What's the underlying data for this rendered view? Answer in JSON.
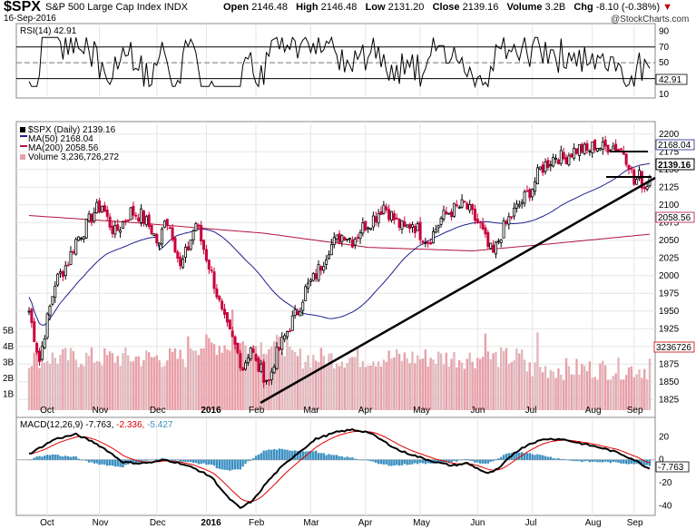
{
  "header": {
    "ticker": "$SPX",
    "description": "S&P 500 Large Cap Index",
    "exchange": "INDX",
    "date": "16-Sep-2016",
    "open_label": "Open",
    "open": "2146.48",
    "high_label": "High",
    "high": "2146.48",
    "low_label": "Low",
    "low": "2131.20",
    "close_label": "Close",
    "close": "2139.16",
    "volume_label": "Volume",
    "volume": "3.2B",
    "chg_label": "Chg",
    "chg": "-8.10 (-0.38%)",
    "brand": "@StockCharts.com"
  },
  "colors": {
    "up": "#000000",
    "down": "#c8003c",
    "ma50": "#1f1f8f",
    "ma200": "#b0133d",
    "volume": "#e8a0a8",
    "macd_hist": "#3a8fc0",
    "macd_signal": "#e00000",
    "rsi": "#000000"
  },
  "chart_data": [
    {
      "type": "line",
      "panel": "RSI",
      "title": "RSI(14) 42.91",
      "series": [
        {
          "name": "RSI(14)",
          "last": 42.91
        }
      ],
      "ylim": [
        10,
        95
      ],
      "y_ticks": [
        90,
        70,
        50,
        30,
        10
      ],
      "reference_lines": [
        70,
        50,
        30
      ],
      "last_label": "42.91"
    },
    {
      "type": "candlestick",
      "panel": "price",
      "title": "$SPX (Daily) 2139.16",
      "legend": [
        "$SPX (Daily) 2139.16",
        "MA(50) 2168.04",
        "MA(200) 2058.56",
        "Volume 3,236,726,272"
      ],
      "ylim": [
        1810,
        2210
      ],
      "y_ticks": [
        2200,
        2175,
        2150,
        2125,
        2100,
        2075,
        2050,
        2025,
        2000,
        1975,
        1950,
        1925,
        1900,
        1875,
        1850,
        1825
      ],
      "volume_ticks": [
        "5B",
        "4B",
        "3B",
        "2B",
        "1B"
      ],
      "x_labels": [
        "Oct",
        "Nov",
        "Dec",
        "2016",
        "Feb",
        "Mar",
        "Apr",
        "May",
        "Jun",
        "Jul",
        "Aug",
        "Sep"
      ],
      "close_anchors": [
        [
          0,
          1950
        ],
        [
          4,
          1880
        ],
        [
          6,
          1920
        ],
        [
          10,
          1990
        ],
        [
          15,
          2020
        ],
        [
          18,
          2050
        ],
        [
          22,
          2070
        ],
        [
          25,
          2090
        ],
        [
          28,
          2100
        ],
        [
          30,
          2080
        ],
        [
          33,
          2060
        ],
        [
          36,
          2075
        ],
        [
          39,
          2090
        ],
        [
          43,
          2085
        ],
        [
          47,
          2065
        ],
        [
          50,
          2040
        ],
        [
          52,
          2085
        ],
        [
          55,
          2060
        ],
        [
          58,
          2010
        ],
        [
          61,
          2040
        ],
        [
          64,
          2075
        ],
        [
          66,
          2050
        ],
        [
          69,
          2015
        ],
        [
          71,
          1990
        ],
        [
          74,
          1945
        ],
        [
          76,
          1925
        ],
        [
          79,
          1900
        ],
        [
          82,
          1870
        ],
        [
          85,
          1900
        ],
        [
          87,
          1875
        ],
        [
          90,
          1860
        ],
        [
          92,
          1850
        ],
        [
          94,
          1880
        ],
        [
          97,
          1905
        ],
        [
          100,
          1930
        ],
        [
          103,
          1950
        ],
        [
          106,
          1980
        ],
        [
          109,
          1995
        ],
        [
          112,
          2015
        ],
        [
          115,
          2040
        ],
        [
          118,
          2050
        ],
        [
          121,
          2060
        ],
        [
          124,
          2050
        ],
        [
          127,
          2065
        ],
        [
          130,
          2075
        ],
        [
          133,
          2085
        ],
        [
          136,
          2100
        ],
        [
          138,
          2090
        ],
        [
          141,
          2075
        ],
        [
          144,
          2065
        ],
        [
          147,
          2075
        ],
        [
          150,
          2060
        ],
        [
          153,
          2050
        ],
        [
          155,
          2060
        ],
        [
          158,
          2080
        ],
        [
          161,
          2090
        ],
        [
          164,
          2095
        ],
        [
          167,
          2100
        ],
        [
          170,
          2085
        ],
        [
          173,
          2070
        ],
        [
          176,
          2040
        ],
        [
          178,
          2030
        ],
        [
          181,
          2060
        ],
        [
          184,
          2080
        ],
        [
          187,
          2095
        ],
        [
          190,
          2110
        ],
        [
          193,
          2125
        ],
        [
          196,
          2150
        ],
        [
          199,
          2160
        ],
        [
          202,
          2170
        ],
        [
          205,
          2165
        ],
        [
          208,
          2175
        ],
        [
          211,
          2180
        ],
        [
          214,
          2175
        ],
        [
          217,
          2185
        ],
        [
          220,
          2180
        ],
        [
          223,
          2185
        ],
        [
          226,
          2180
        ],
        [
          228,
          2175
        ],
        [
          230,
          2160
        ],
        [
          232,
          2130
        ],
        [
          234,
          2140
        ],
        [
          236,
          2125
        ],
        [
          238,
          2139
        ]
      ],
      "last_labels": {
        "ma50": "2168.04",
        "ma200": "2058.56",
        "close": "2139.16",
        "volume": "3236726"
      }
    },
    {
      "type": "line",
      "panel": "MACD",
      "title": "MACD(12,26,9)",
      "series": [
        {
          "name": "MACD(12,26,9)",
          "last": -7.763
        },
        {
          "name": "signal",
          "last": -2.336
        },
        {
          "name": "histogram",
          "last": -5.427
        }
      ],
      "ylim": [
        -45,
        32
      ],
      "y_ticks": [
        20,
        0,
        -20,
        -40
      ],
      "macd_anchors": [
        [
          0,
          5
        ],
        [
          10,
          18
        ],
        [
          18,
          22
        ],
        [
          25,
          15
        ],
        [
          30,
          8
        ],
        [
          36,
          -2
        ],
        [
          42,
          -3
        ],
        [
          48,
          -2
        ],
        [
          52,
          0
        ],
        [
          58,
          -3
        ],
        [
          64,
          -8
        ],
        [
          70,
          -15
        ],
        [
          76,
          -32
        ],
        [
          81,
          -42
        ],
        [
          86,
          -35
        ],
        [
          91,
          -20
        ],
        [
          96,
          -8
        ],
        [
          102,
          4
        ],
        [
          110,
          18
        ],
        [
          118,
          24
        ],
        [
          124,
          26
        ],
        [
          130,
          24
        ],
        [
          136,
          16
        ],
        [
          142,
          8
        ],
        [
          150,
          2
        ],
        [
          156,
          -2
        ],
        [
          162,
          -5
        ],
        [
          168,
          -3
        ],
        [
          176,
          -12
        ],
        [
          180,
          -8
        ],
        [
          186,
          6
        ],
        [
          192,
          14
        ],
        [
          198,
          18
        ],
        [
          204,
          18
        ],
        [
          212,
          14
        ],
        [
          220,
          10
        ],
        [
          226,
          6
        ],
        [
          232,
          0
        ],
        [
          238,
          -8
        ]
      ],
      "last_label": "-7.763",
      "x_labels": [
        "Oct",
        "Nov",
        "Dec",
        "2016",
        "Feb",
        "Mar",
        "Apr",
        "May",
        "Jun",
        "Jul",
        "Aug",
        "Sep"
      ]
    }
  ],
  "macd_legend": {
    "label": "MACD(12,26,9)",
    "macd": "-7.763,",
    "signal": "-2.336,",
    "hist": "-5.427"
  }
}
